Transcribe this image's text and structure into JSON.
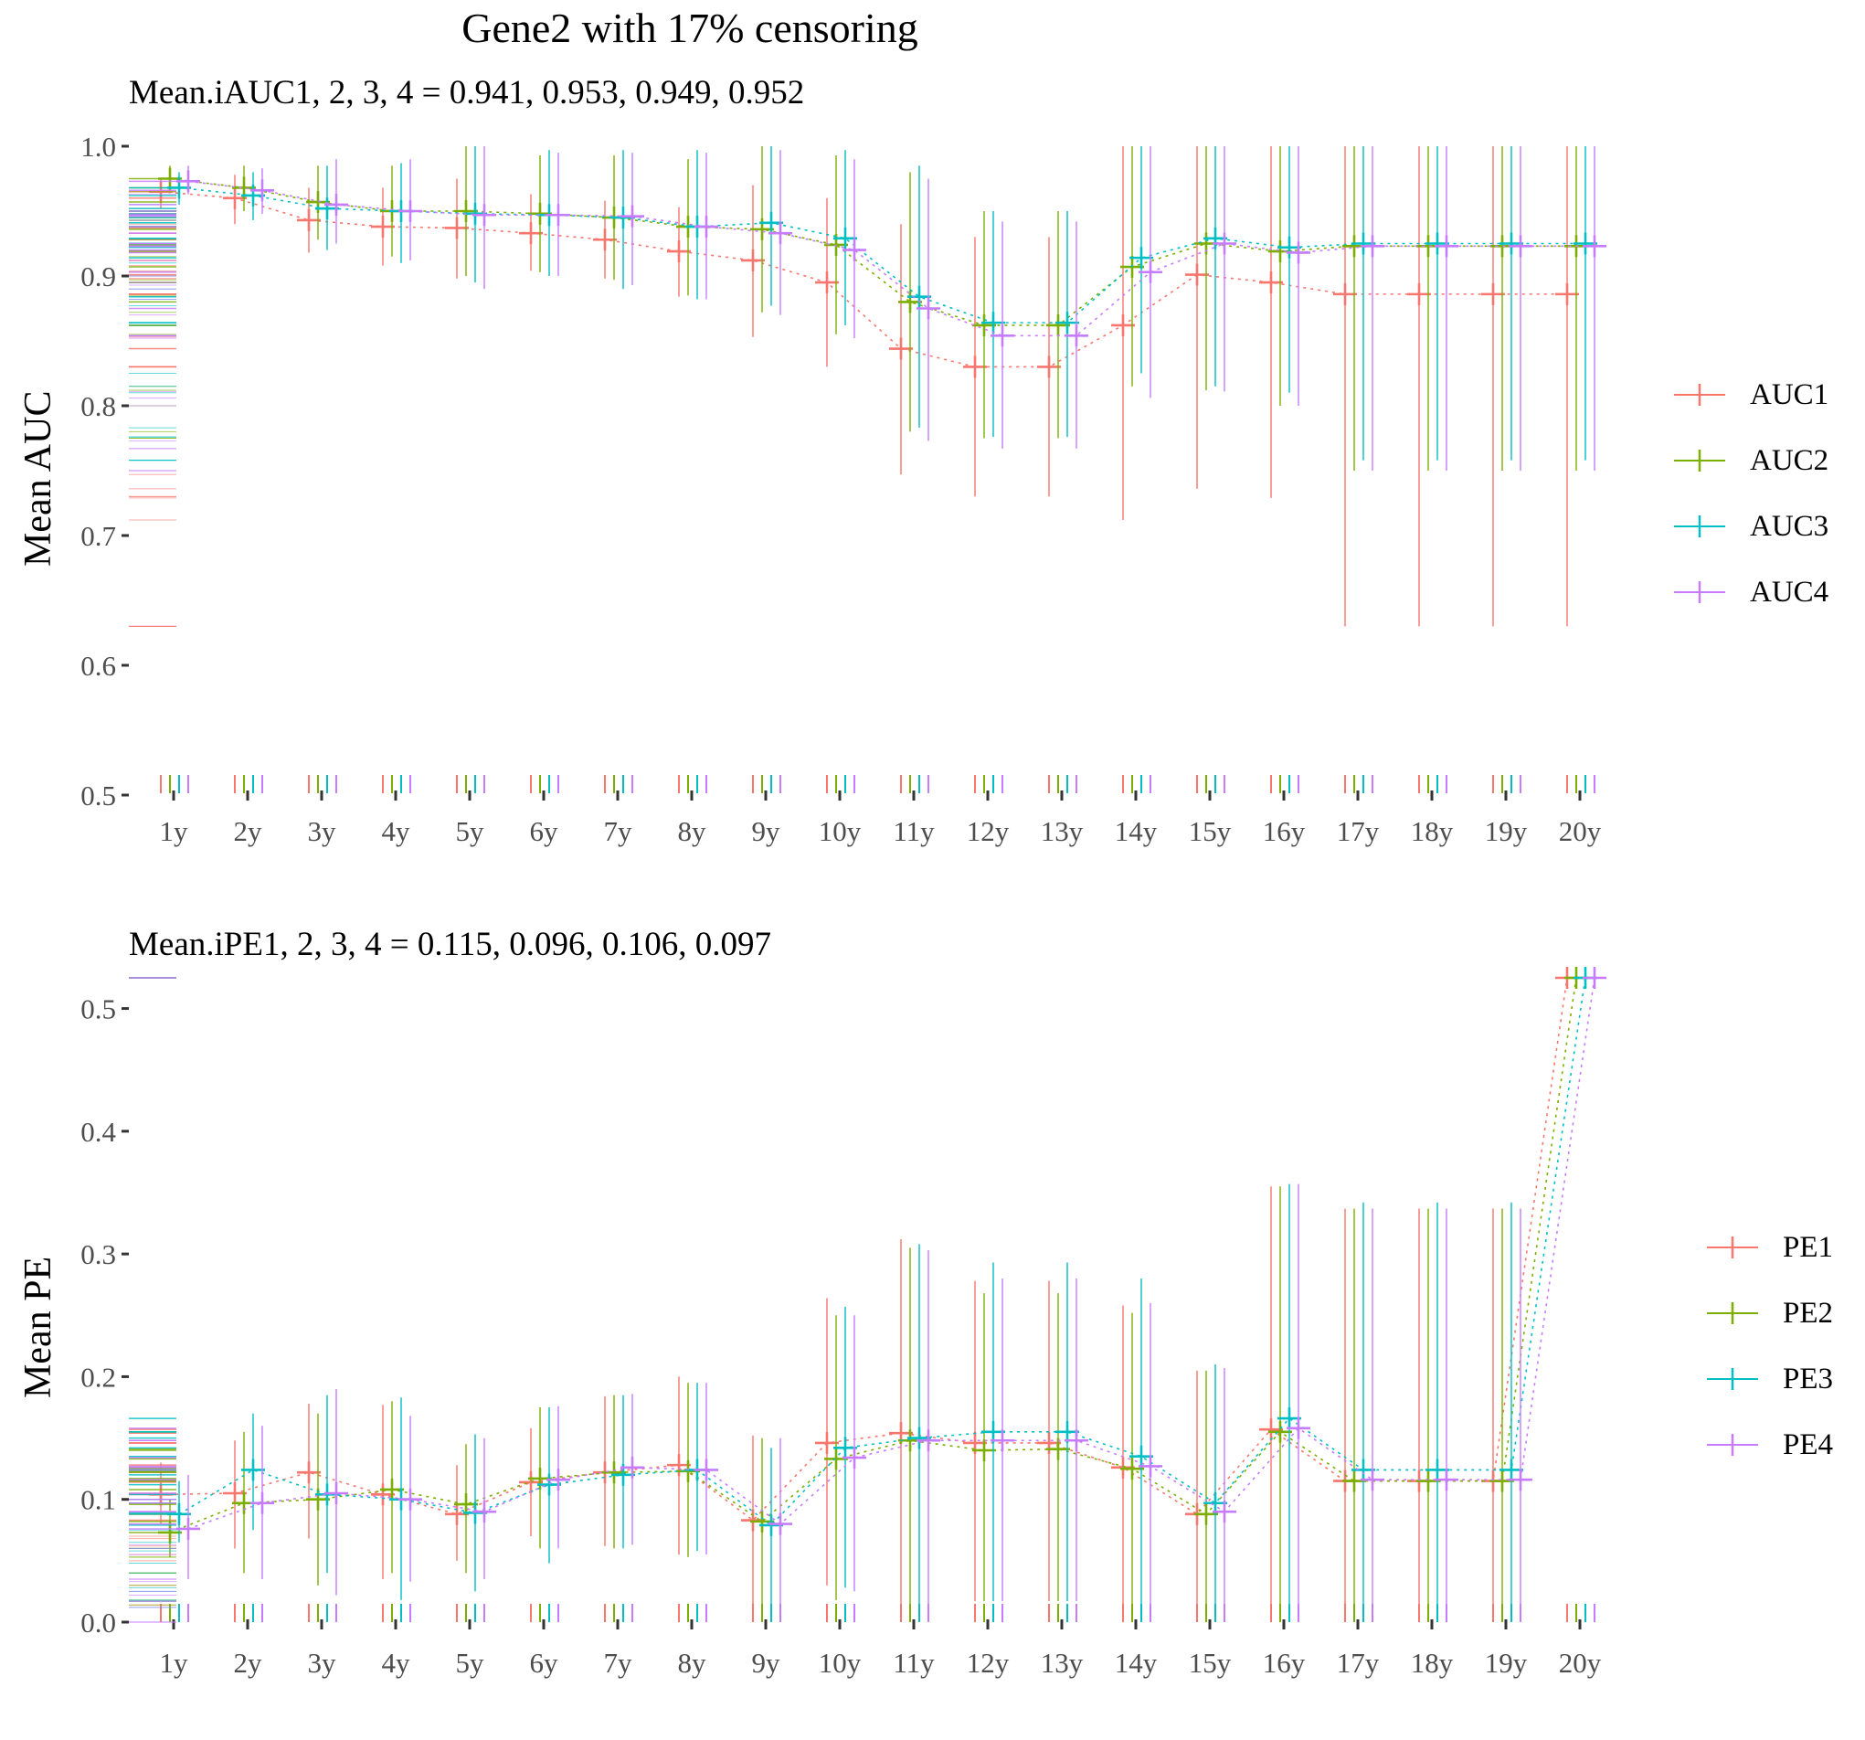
{
  "main_title": "Gene2 with 17% censoring",
  "chart_data": [
    {
      "type": "line",
      "subtitle": "Mean.iAUC1, 2, 3, 4 =  0.941, 0.953, 0.949, 0.952",
      "ylabel": "Mean AUC",
      "xlabel": "",
      "categories": [
        "1y",
        "2y",
        "3y",
        "4y",
        "5y",
        "6y",
        "7y",
        "8y",
        "9y",
        "10y",
        "11y",
        "12y",
        "13y",
        "14y",
        "15y",
        "16y",
        "17y",
        "18y",
        "19y",
        "20y"
      ],
      "ylim": [
        0.5,
        1.0
      ],
      "yticks": [
        "0.5",
        "0.6",
        "0.7",
        "0.8",
        "0.9",
        "1.0"
      ],
      "grid": false,
      "legend_position": "right",
      "series": [
        {
          "name": "AUC1",
          "color": "#F8766D",
          "values": [
            0.965,
            0.96,
            0.943,
            0.938,
            0.937,
            0.933,
            0.928,
            0.919,
            0.912,
            0.895,
            0.844,
            0.83,
            0.83,
            0.862,
            0.901,
            0.895,
            0.886,
            0.886,
            0.886,
            0.886
          ],
          "lower": [
            0.952,
            0.94,
            0.918,
            0.908,
            0.898,
            0.904,
            0.898,
            0.884,
            0.853,
            0.83,
            0.747,
            0.73,
            0.73,
            0.712,
            0.736,
            0.729,
            0.63,
            0.63,
            0.63,
            0.63
          ],
          "upper": [
            0.975,
            0.978,
            0.968,
            0.968,
            0.975,
            0.963,
            0.958,
            0.953,
            0.97,
            0.96,
            0.94,
            0.93,
            0.93,
            1.0,
            1.0,
            1.0,
            1.0,
            1.0,
            1.0,
            1.0
          ]
        },
        {
          "name": "AUC2",
          "color": "#7CAE00",
          "values": [
            0.975,
            0.968,
            0.957,
            0.95,
            0.95,
            0.948,
            0.945,
            0.938,
            0.936,
            0.924,
            0.88,
            0.862,
            0.862,
            0.907,
            0.925,
            0.919,
            0.923,
            0.923,
            0.923,
            0.923
          ],
          "lower": [
            0.965,
            0.95,
            0.928,
            0.915,
            0.9,
            0.903,
            0.897,
            0.885,
            0.872,
            0.855,
            0.78,
            0.775,
            0.775,
            0.815,
            0.812,
            0.8,
            0.75,
            0.75,
            0.75,
            0.75
          ],
          "upper": [
            0.985,
            0.985,
            0.985,
            0.985,
            1.0,
            0.993,
            0.993,
            0.99,
            1.0,
            0.993,
            0.98,
            0.95,
            0.95,
            1.0,
            1.0,
            1.0,
            1.0,
            1.0,
            1.0,
            1.0
          ]
        },
        {
          "name": "AUC3",
          "color": "#00BFC4",
          "values": [
            0.968,
            0.962,
            0.952,
            0.95,
            0.948,
            0.947,
            0.945,
            0.938,
            0.941,
            0.929,
            0.884,
            0.864,
            0.864,
            0.914,
            0.929,
            0.922,
            0.925,
            0.925,
            0.925,
            0.925
          ],
          "lower": [
            0.955,
            0.943,
            0.92,
            0.91,
            0.895,
            0.9,
            0.89,
            0.882,
            0.877,
            0.862,
            0.783,
            0.776,
            0.776,
            0.825,
            0.815,
            0.81,
            0.758,
            0.758,
            0.758,
            0.758
          ],
          "upper": [
            0.98,
            0.98,
            0.985,
            0.987,
            1.0,
            0.997,
            0.997,
            0.997,
            1.0,
            0.997,
            0.985,
            0.95,
            0.95,
            1.0,
            1.0,
            1.0,
            1.0,
            1.0,
            1.0,
            1.0
          ]
        },
        {
          "name": "AUC4",
          "color": "#C77CFF",
          "values": [
            0.973,
            0.966,
            0.955,
            0.95,
            0.947,
            0.947,
            0.946,
            0.938,
            0.933,
            0.92,
            0.875,
            0.854,
            0.854,
            0.903,
            0.925,
            0.918,
            0.923,
            0.923,
            0.923,
            0.923
          ],
          "lower": [
            0.963,
            0.948,
            0.925,
            0.912,
            0.89,
            0.9,
            0.893,
            0.882,
            0.87,
            0.852,
            0.773,
            0.767,
            0.767,
            0.806,
            0.811,
            0.8,
            0.75,
            0.75,
            0.75,
            0.75
          ],
          "upper": [
            0.985,
            0.983,
            0.99,
            0.99,
            1.0,
            0.995,
            0.995,
            0.995,
            0.997,
            0.99,
            0.975,
            0.942,
            0.942,
            1.0,
            1.0,
            1.0,
            1.0,
            1.0,
            1.0,
            1.0
          ]
        }
      ]
    },
    {
      "type": "line",
      "subtitle": "Mean.iPE1, 2, 3, 4 =  0.115, 0.096, 0.106, 0.097",
      "ylabel": "Mean PE",
      "xlabel": "",
      "categories": [
        "1y",
        "2y",
        "3y",
        "4y",
        "5y",
        "6y",
        "7y",
        "8y",
        "9y",
        "10y",
        "11y",
        "12y",
        "13y",
        "14y",
        "15y",
        "16y",
        "17y",
        "18y",
        "19y",
        "20y"
      ],
      "ylim": [
        0.0,
        0.525
      ],
      "yticks": [
        "0.0",
        "0.1",
        "0.2",
        "0.3",
        "0.4",
        "0.5"
      ],
      "grid": false,
      "legend_position": "right",
      "series": [
        {
          "name": "PE1",
          "color": "#F8766D",
          "values": [
            0.104,
            0.105,
            0.122,
            0.104,
            0.088,
            0.114,
            0.122,
            0.128,
            0.083,
            0.146,
            0.154,
            0.146,
            0.146,
            0.126,
            0.088,
            0.157,
            0.115,
            0.115,
            0.115,
            0.525
          ],
          "lower": [
            0.08,
            0.06,
            0.068,
            0.035,
            0.05,
            0.07,
            0.062,
            0.055,
            0.014,
            0.03,
            0.0,
            0.017,
            0.017,
            0.0,
            0.0,
            0.0,
            0.0,
            0.0,
            0.0,
            0.525
          ],
          "upper": [
            0.13,
            0.148,
            0.178,
            0.177,
            0.128,
            0.158,
            0.184,
            0.2,
            0.152,
            0.264,
            0.312,
            0.278,
            0.278,
            0.258,
            0.205,
            0.355,
            0.337,
            0.337,
            0.337,
            0.525
          ]
        },
        {
          "name": "PE2",
          "color": "#7CAE00",
          "values": [
            0.073,
            0.097,
            0.1,
            0.108,
            0.096,
            0.117,
            0.122,
            0.123,
            0.082,
            0.133,
            0.148,
            0.14,
            0.141,
            0.125,
            0.088,
            0.155,
            0.115,
            0.115,
            0.115,
            0.525
          ],
          "lower": [
            0.053,
            0.04,
            0.03,
            0.04,
            0.04,
            0.06,
            0.06,
            0.053,
            0.014,
            0.018,
            0.0,
            0.017,
            0.017,
            0.0,
            0.0,
            0.0,
            0.0,
            0.0,
            0.0,
            0.525
          ],
          "upper": [
            0.1,
            0.155,
            0.17,
            0.18,
            0.145,
            0.175,
            0.185,
            0.195,
            0.15,
            0.25,
            0.305,
            0.268,
            0.268,
            0.252,
            0.205,
            0.355,
            0.337,
            0.337,
            0.337,
            0.525
          ]
        },
        {
          "name": "PE3",
          "color": "#00BFC4",
          "values": [
            0.088,
            0.124,
            0.104,
            0.1,
            0.089,
            0.112,
            0.12,
            0.124,
            0.079,
            0.142,
            0.15,
            0.155,
            0.155,
            0.135,
            0.097,
            0.166,
            0.124,
            0.124,
            0.124,
            0.525
          ],
          "lower": [
            0.065,
            0.075,
            0.04,
            0.018,
            0.025,
            0.048,
            0.06,
            0.058,
            0.012,
            0.028,
            0.0,
            0.017,
            0.017,
            0.0,
            0.0,
            0.0,
            0.0,
            0.0,
            0.0,
            0.525
          ],
          "upper": [
            0.115,
            0.17,
            0.185,
            0.183,
            0.153,
            0.175,
            0.185,
            0.195,
            0.142,
            0.257,
            0.308,
            0.293,
            0.293,
            0.28,
            0.21,
            0.357,
            0.342,
            0.342,
            0.342,
            0.525
          ]
        },
        {
          "name": "PE4",
          "color": "#C77CFF",
          "values": [
            0.076,
            0.097,
            0.105,
            0.1,
            0.09,
            0.116,
            0.126,
            0.124,
            0.08,
            0.134,
            0.148,
            0.148,
            0.148,
            0.127,
            0.09,
            0.158,
            0.116,
            0.116,
            0.116,
            0.525
          ],
          "lower": [
            0.035,
            0.035,
            0.022,
            0.033,
            0.035,
            0.06,
            0.063,
            0.055,
            0.012,
            0.025,
            0.0,
            0.017,
            0.017,
            0.0,
            0.0,
            0.0,
            0.0,
            0.0,
            0.0,
            0.525
          ],
          "upper": [
            0.12,
            0.16,
            0.19,
            0.168,
            0.15,
            0.176,
            0.186,
            0.195,
            0.15,
            0.25,
            0.303,
            0.28,
            0.28,
            0.26,
            0.207,
            0.357,
            0.337,
            0.337,
            0.337,
            0.525
          ]
        }
      ]
    }
  ]
}
